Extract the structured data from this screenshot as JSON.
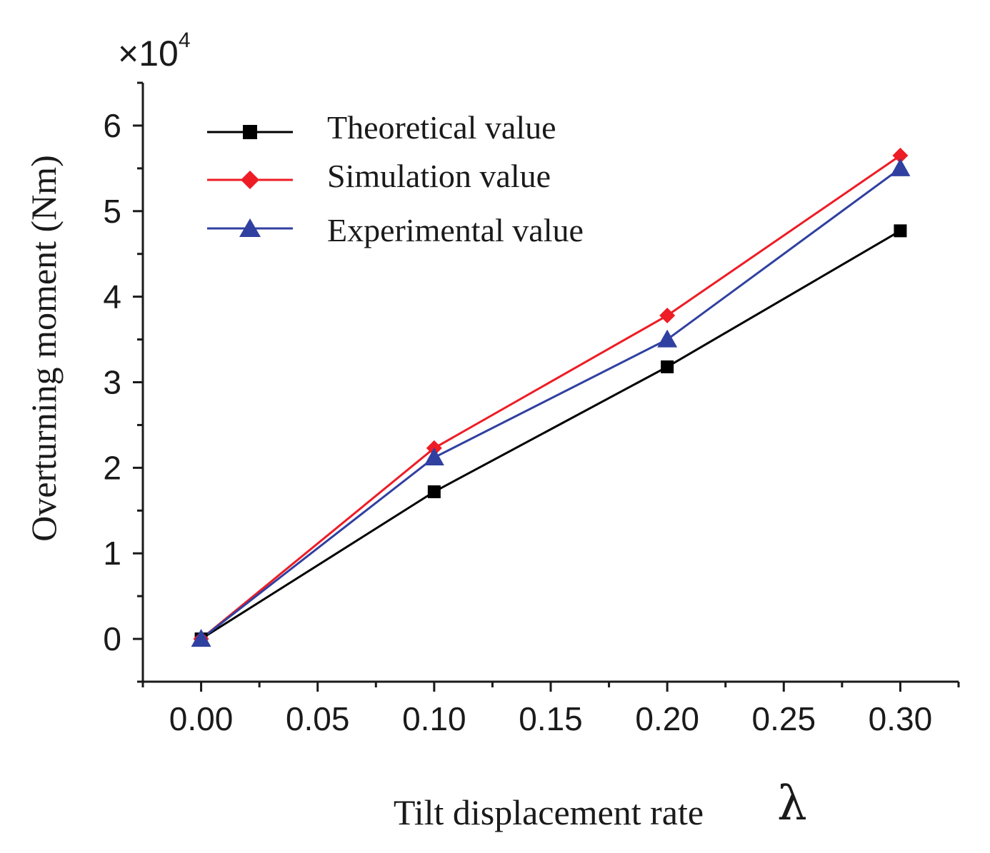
{
  "chart_data": {
    "type": "line",
    "x": [
      0.0,
      0.1,
      0.2,
      0.3
    ],
    "series": [
      {
        "name": "Theoretical value",
        "color": "#000000",
        "marker": "square",
        "values": [
          0.0,
          1.72,
          3.18,
          4.77
        ]
      },
      {
        "name": "Simulation value",
        "color": "#ee1c25",
        "marker": "diamond",
        "values": [
          0.0,
          2.23,
          3.78,
          5.65
        ]
      },
      {
        "name": "Experimental value",
        "color": "#3040a0",
        "marker": "triangle",
        "values": [
          0.0,
          2.12,
          3.5,
          5.5
        ]
      }
    ],
    "xlabel": "Tilt displacement rate",
    "xlabel_symbol": "λ",
    "ylabel": "Overturning moment (Nm)",
    "y_multiplier": "×10",
    "y_multiplier_exp": "4",
    "xlim": [
      -0.025,
      0.325
    ],
    "ylim": [
      -0.5,
      6.5
    ],
    "xticks": [
      "0.00",
      "0.05",
      "0.10",
      "0.15",
      "0.20",
      "0.25",
      "0.30"
    ],
    "yticks": [
      "0",
      "1",
      "2",
      "3",
      "4",
      "5",
      "6"
    ],
    "grid": false,
    "legend_position": "top-left"
  }
}
